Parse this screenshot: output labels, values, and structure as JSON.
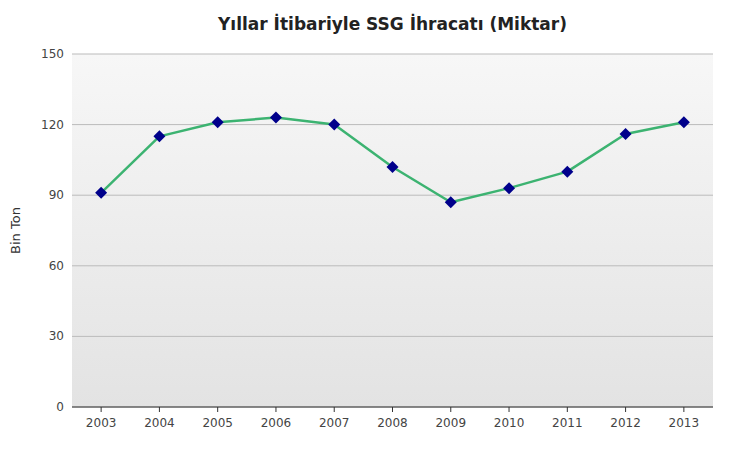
{
  "chart_data": {
    "type": "line",
    "title": "Yıllar İtibariyle SSG İhracatı (Miktar)",
    "ylabel": "Bin Ton",
    "x": [
      2003,
      2004,
      2005,
      2006,
      2007,
      2008,
      2009,
      2010,
      2011,
      2012,
      2013
    ],
    "series": [
      {
        "type": "line",
        "color": "#3CB371",
        "values": [
          91,
          115,
          121,
          123,
          120,
          102,
          87,
          93,
          100,
          116,
          121
        ]
      },
      {
        "type": "scatter",
        "color": "#00008B",
        "marker": "diamond",
        "values": [
          91,
          115,
          121,
          123,
          120,
          102,
          87,
          93,
          100,
          116,
          121
        ]
      }
    ],
    "xlim": [
      2002.5,
      2013.5
    ],
    "xticks": [
      2003,
      2004,
      2005,
      2006,
      2007,
      2008,
      2009,
      2010,
      2011,
      2012,
      2013
    ],
    "ylim": [
      0,
      150
    ],
    "yticks": [
      0,
      30,
      60,
      90,
      120,
      150
    ],
    "grid": true
  }
}
